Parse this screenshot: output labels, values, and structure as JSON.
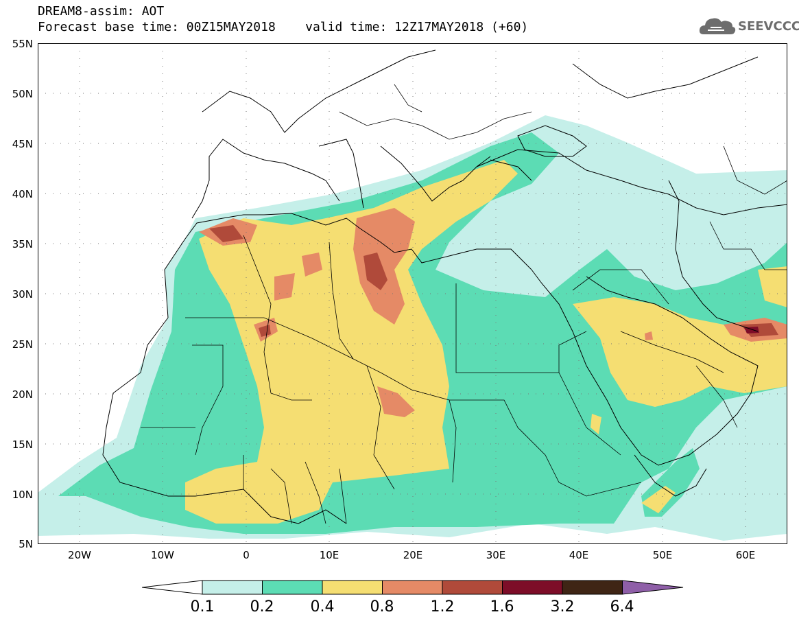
{
  "title": {
    "line1": "DREAM8-assim: AOT",
    "line2": "Forecast base time: 00Z15MAY2018    valid time: 12Z17MAY2018 (+60)"
  },
  "logo": {
    "text": "SEEVCCC",
    "icon": "cloud-icon"
  },
  "map": {
    "variable": "AOT",
    "lat_range": [
      5,
      55
    ],
    "lon_range": [
      -25,
      65
    ],
    "grid": "dotted",
    "lat_ticks": [
      {
        "value": 55,
        "label": "55N"
      },
      {
        "value": 50,
        "label": "50N"
      },
      {
        "value": 45,
        "label": "45N"
      },
      {
        "value": 40,
        "label": "40N"
      },
      {
        "value": 35,
        "label": "35N"
      },
      {
        "value": 30,
        "label": "30N"
      },
      {
        "value": 25,
        "label": "25N"
      },
      {
        "value": 20,
        "label": "20N"
      },
      {
        "value": 15,
        "label": "15N"
      },
      {
        "value": 10,
        "label": "10N"
      },
      {
        "value": 5,
        "label": "5N"
      }
    ],
    "lon_ticks": [
      {
        "value": -20,
        "label": "20W"
      },
      {
        "value": -10,
        "label": "10W"
      },
      {
        "value": 0,
        "label": "0"
      },
      {
        "value": 10,
        "label": "10E"
      },
      {
        "value": 20,
        "label": "20E"
      },
      {
        "value": 30,
        "label": "30E"
      },
      {
        "value": 40,
        "label": "40E"
      },
      {
        "value": 50,
        "label": "50E"
      },
      {
        "value": 60,
        "label": "60E"
      }
    ]
  },
  "colorbar": {
    "labels": [
      "0.1",
      "0.2",
      "0.4",
      "0.8",
      "1.2",
      "1.6",
      "3.2",
      "6.4"
    ],
    "colors": [
      "#ffffff",
      "#c5efe9",
      "#5cdcb4",
      "#f5de72",
      "#e58a66",
      "#b04a3a",
      "#7d0d28",
      "#3f2515",
      "#8f5fa8"
    ]
  }
}
